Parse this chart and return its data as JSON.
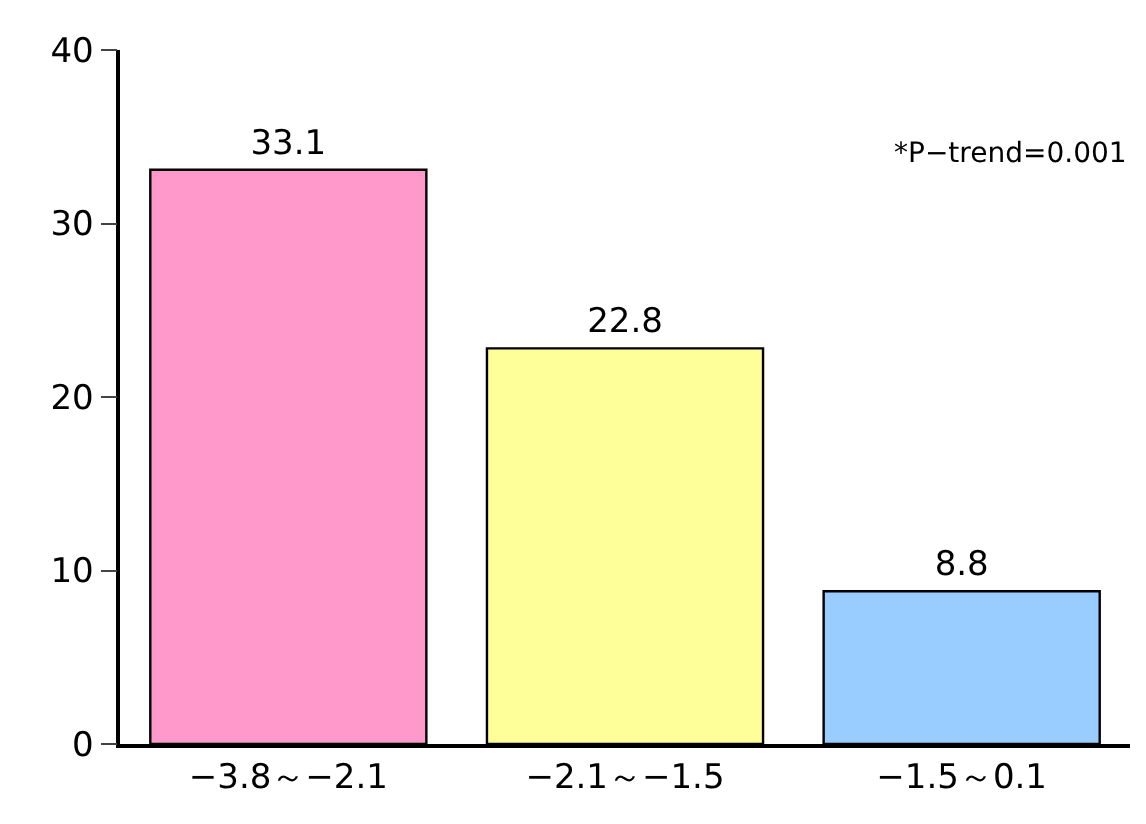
{
  "chart_data": {
    "type": "bar",
    "categories": [
      "−3.8～−2.1",
      "−2.1～−1.5",
      "−1.5～0.1"
    ],
    "values": [
      33.1,
      22.8,
      8.8
    ],
    "colors": [
      "#ff99cc",
      "#ffff99",
      "#99ccff"
    ],
    "ylim": [
      0,
      40
    ],
    "yticks": [
      0,
      10,
      20,
      30,
      40
    ],
    "data_labels": true,
    "annotations": [
      "*P−trend=0.001"
    ]
  }
}
